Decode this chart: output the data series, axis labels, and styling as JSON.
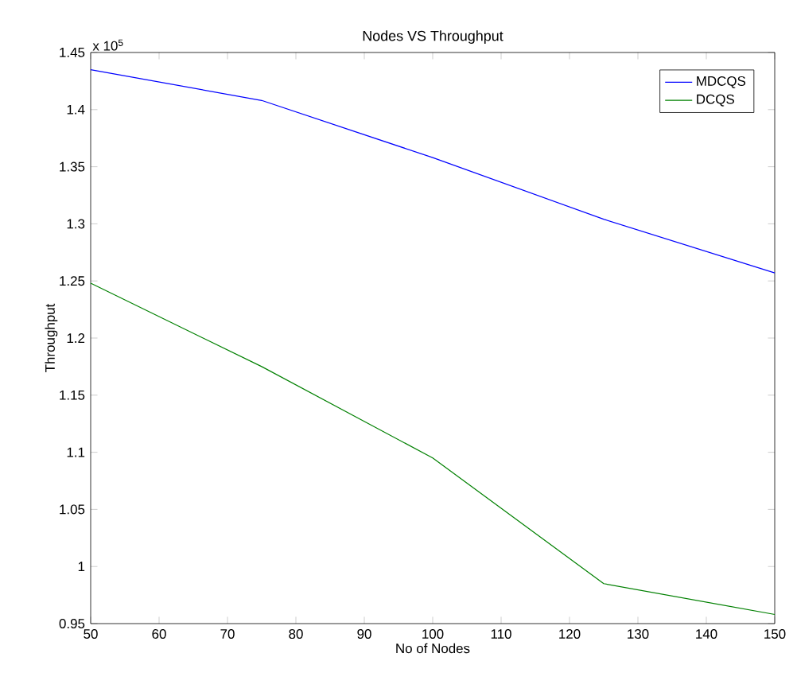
{
  "chart_data": {
    "type": "line",
    "title": "Nodes VS Throughput",
    "xlabel": "No of Nodes",
    "ylabel": "Throughput",
    "annotations": [
      "x 10$^{5}$"
    ],
    "x": [
      50,
      75,
      100,
      125,
      150
    ],
    "series": [
      {
        "name": "MDCQS",
        "color": "#0000ff",
        "values": [
          1.435,
          1.408,
          1.358,
          1.304,
          1.257
        ]
      },
      {
        "name": "DCQS",
        "color": "#008000",
        "values": [
          1.248,
          1.175,
          1.095,
          0.985,
          0.958
        ]
      }
    ],
    "xlim": [
      50,
      150
    ],
    "xticks": [
      50,
      60,
      70,
      80,
      90,
      100,
      110,
      120,
      130,
      140,
      150
    ],
    "ylim": [
      0.95,
      1.45
    ],
    "yticks": [
      {
        "value": 0.95,
        "label": "0.95"
      },
      {
        "value": 1.0,
        "label": "1"
      },
      {
        "value": 1.05,
        "label": "1.05"
      },
      {
        "value": 1.1,
        "label": "1.1"
      },
      {
        "value": 1.15,
        "label": "1.15"
      },
      {
        "value": 1.2,
        "label": "1.2"
      },
      {
        "value": 1.25,
        "label": "1.25"
      },
      {
        "value": 1.3,
        "label": "1.3"
      },
      {
        "value": 1.35,
        "label": "1.35"
      },
      {
        "value": 1.4,
        "label": "1.4"
      },
      {
        "value": 1.45,
        "label": "1.45"
      }
    ],
    "legend": "top right",
    "grid": false,
    "marker": "none",
    "line_style": "solid"
  }
}
